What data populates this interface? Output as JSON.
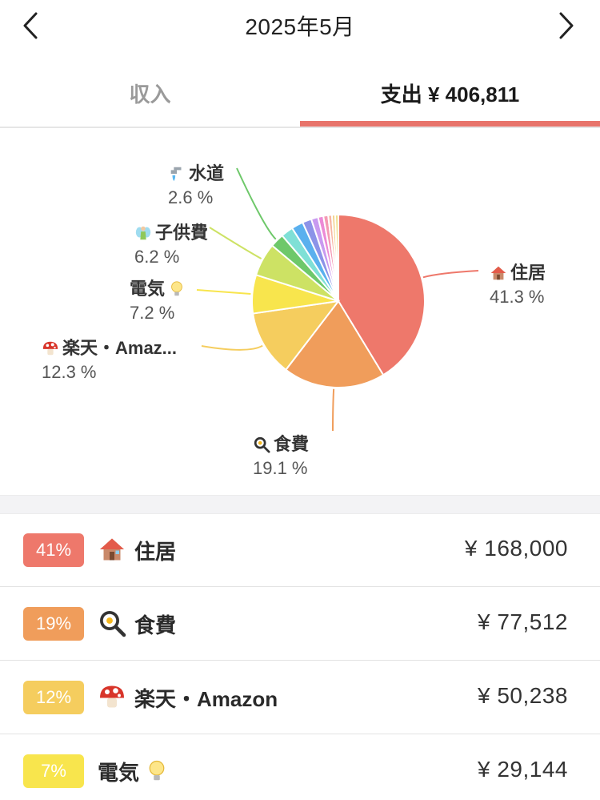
{
  "header": {
    "month_title": "2025年5月"
  },
  "tabs": {
    "income_label": "収入",
    "expense_label": "支出 ¥ 406,811",
    "active": "expense"
  },
  "chart_data": {
    "type": "pie",
    "slices": [
      {
        "name": "住居",
        "percent": 41.3,
        "percent_label": "41.3 %",
        "color": "#ee786b",
        "icon": "house-icon",
        "labeled": true
      },
      {
        "name": "食費",
        "percent": 19.1,
        "percent_label": "19.1 %",
        "color": "#f09d5b",
        "icon": "frying-pan-icon",
        "labeled": true
      },
      {
        "name": "楽天・Amaz...",
        "percent": 12.3,
        "percent_label": "12.3 %",
        "color": "#f5cd5e",
        "icon": "mushroom-icon",
        "labeled": true
      },
      {
        "name": "電気",
        "percent": 7.2,
        "percent_label": "7.2 %",
        "color": "#f8e54d",
        "icon": "lightbulb-icon",
        "labeled": true
      },
      {
        "name": "子供費",
        "percent": 6.2,
        "percent_label": "6.2 %",
        "color": "#cde264",
        "icon": "fairy-icon",
        "labeled": true
      },
      {
        "name": "水道",
        "percent": 2.6,
        "percent_label": "2.6 %",
        "color": "#6ec86a",
        "icon": "faucet-icon",
        "labeled": true
      },
      {
        "name": "",
        "percent": 2.3,
        "color": "#7fe0d6",
        "labeled": false
      },
      {
        "name": "",
        "percent": 2.2,
        "color": "#5ab0ee",
        "labeled": false
      },
      {
        "name": "",
        "percent": 1.7,
        "color": "#8c93e8",
        "labeled": false
      },
      {
        "name": "",
        "percent": 1.3,
        "color": "#c89af0",
        "labeled": false
      },
      {
        "name": "",
        "percent": 1.0,
        "color": "#ec8ad6",
        "labeled": false
      },
      {
        "name": "",
        "percent": 0.9,
        "color": "#f49ab4",
        "labeled": false
      },
      {
        "name": "",
        "percent": 0.7,
        "color": "#f7b7a3",
        "labeled": false
      },
      {
        "name": "",
        "percent": 0.6,
        "color": "#f3d28a",
        "labeled": false
      },
      {
        "name": "",
        "percent": 0.6,
        "color": "#f0e08c",
        "labeled": false
      }
    ]
  },
  "list": {
    "rows": [
      {
        "badge": "41%",
        "badge_color": "#ee786b",
        "icon": "house-icon",
        "name": "住居",
        "amount": "¥ 168,000"
      },
      {
        "badge": "19%",
        "badge_color": "#f09d5b",
        "icon": "frying-pan-icon",
        "name": "食費",
        "amount": "¥ 77,512"
      },
      {
        "badge": "12%",
        "badge_color": "#f5cd5e",
        "icon": "mushroom-icon",
        "name": "楽天・Amazon",
        "amount": "¥ 50,238"
      },
      {
        "badge": "7%",
        "badge_color": "#f8e54d",
        "icon": "lightbulb-icon",
        "name": "電気",
        "amount": "¥ 29,144"
      }
    ]
  }
}
